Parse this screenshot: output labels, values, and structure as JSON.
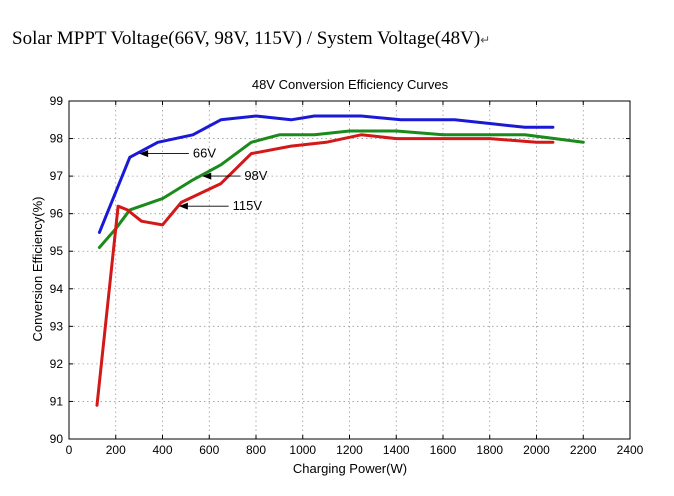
{
  "page": {
    "heading": "Solar MPPT Voltage(66V, 98V, 115V) / System Voltage(48V)",
    "heading_mark": "↵"
  },
  "chart_data": {
    "type": "line",
    "title": "48V Conversion Efficiency Curves",
    "xlabel": "Charging Power(W)",
    "ylabel": "Conversion Efficiency(%)",
    "xlim": [
      0,
      2400
    ],
    "ylim": [
      90,
      99
    ],
    "xticks": [
      0,
      200,
      400,
      600,
      800,
      1000,
      1200,
      1400,
      1600,
      1800,
      2000,
      2200,
      2400
    ],
    "yticks": [
      90,
      91,
      92,
      93,
      94,
      95,
      96,
      97,
      98,
      99
    ],
    "grid": true,
    "series": [
      {
        "name": "66V",
        "color": "#1a1ad6",
        "x": [
          130,
          260,
          380,
          530,
          650,
          800,
          950,
          1050,
          1250,
          1420,
          1650,
          1800,
          1950,
          2070
        ],
        "y": [
          95.5,
          97.5,
          97.9,
          98.1,
          98.5,
          98.6,
          98.5,
          98.6,
          98.6,
          98.5,
          98.5,
          98.4,
          98.3,
          98.3
        ]
      },
      {
        "name": "98V",
        "color": "#1a8a1a",
        "x": [
          130,
          200,
          260,
          400,
          530,
          650,
          780,
          900,
          1050,
          1200,
          1400,
          1600,
          1800,
          1950,
          2200
        ],
        "y": [
          95.1,
          95.6,
          96.1,
          96.4,
          96.9,
          97.3,
          97.9,
          98.1,
          98.1,
          98.2,
          98.2,
          98.1,
          98.1,
          98.1,
          97.9
        ]
      },
      {
        "name": "115V",
        "color": "#d41818",
        "x": [
          120,
          210,
          250,
          310,
          400,
          480,
          650,
          780,
          950,
          1100,
          1250,
          1400,
          1600,
          1800,
          2000,
          2070
        ],
        "y": [
          90.9,
          96.2,
          96.1,
          95.8,
          95.7,
          96.3,
          96.8,
          97.6,
          97.8,
          97.9,
          98.1,
          98.0,
          98.0,
          98.0,
          97.9,
          97.9
        ]
      }
    ],
    "annotations": [
      {
        "text": "66V",
        "series": "66V",
        "point_x": 300,
        "point_y": 97.6,
        "label_x": 530,
        "label_y": 97.6
      },
      {
        "text": "98V",
        "series": "98V",
        "point_x": 570,
        "point_y": 97.0,
        "label_x": 750,
        "label_y": 97.0
      },
      {
        "text": "115V",
        "series": "115V",
        "point_x": 470,
        "point_y": 96.2,
        "label_x": 700,
        "label_y": 96.2
      }
    ]
  }
}
